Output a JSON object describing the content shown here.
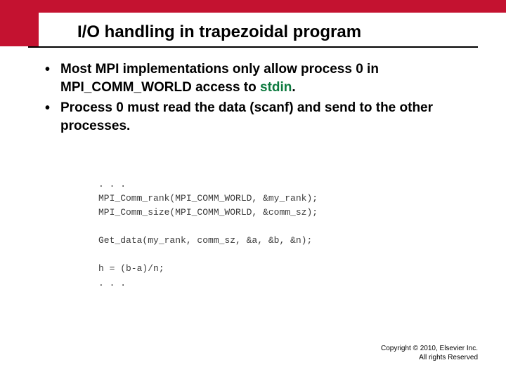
{
  "colors": {
    "red": "#c41230",
    "stdin": "#0d7a3f",
    "underline": "#000000"
  },
  "title": {
    "text": "I/O handling in  trapezoidal program",
    "fontsize": 24
  },
  "bullets": {
    "fontsize": 19,
    "items": [
      {
        "pre": "Most MPI implementations only allow process 0 in MPI_COMM_WORLD access to ",
        "highlight": "stdin",
        "post": "."
      },
      {
        "pre": "Process 0 must read the data (scanf) and send to the other processes.",
        "highlight": "",
        "post": ""
      }
    ]
  },
  "code": {
    "fontsize": 13,
    "text": ". . .\nMPI_Comm_rank(MPI_COMM_WORLD, &my_rank);\nMPI_Comm_size(MPI_COMM_WORLD, &comm_sz);\n\nGet_data(my_rank, comm_sz, &a, &b, &n);\n\nh = (b-a)/n;\n. . ."
  },
  "copyright": {
    "fontsize": 10,
    "line1": "Copyright © 2010, Elsevier Inc.",
    "line2": "All rights Reserved"
  }
}
